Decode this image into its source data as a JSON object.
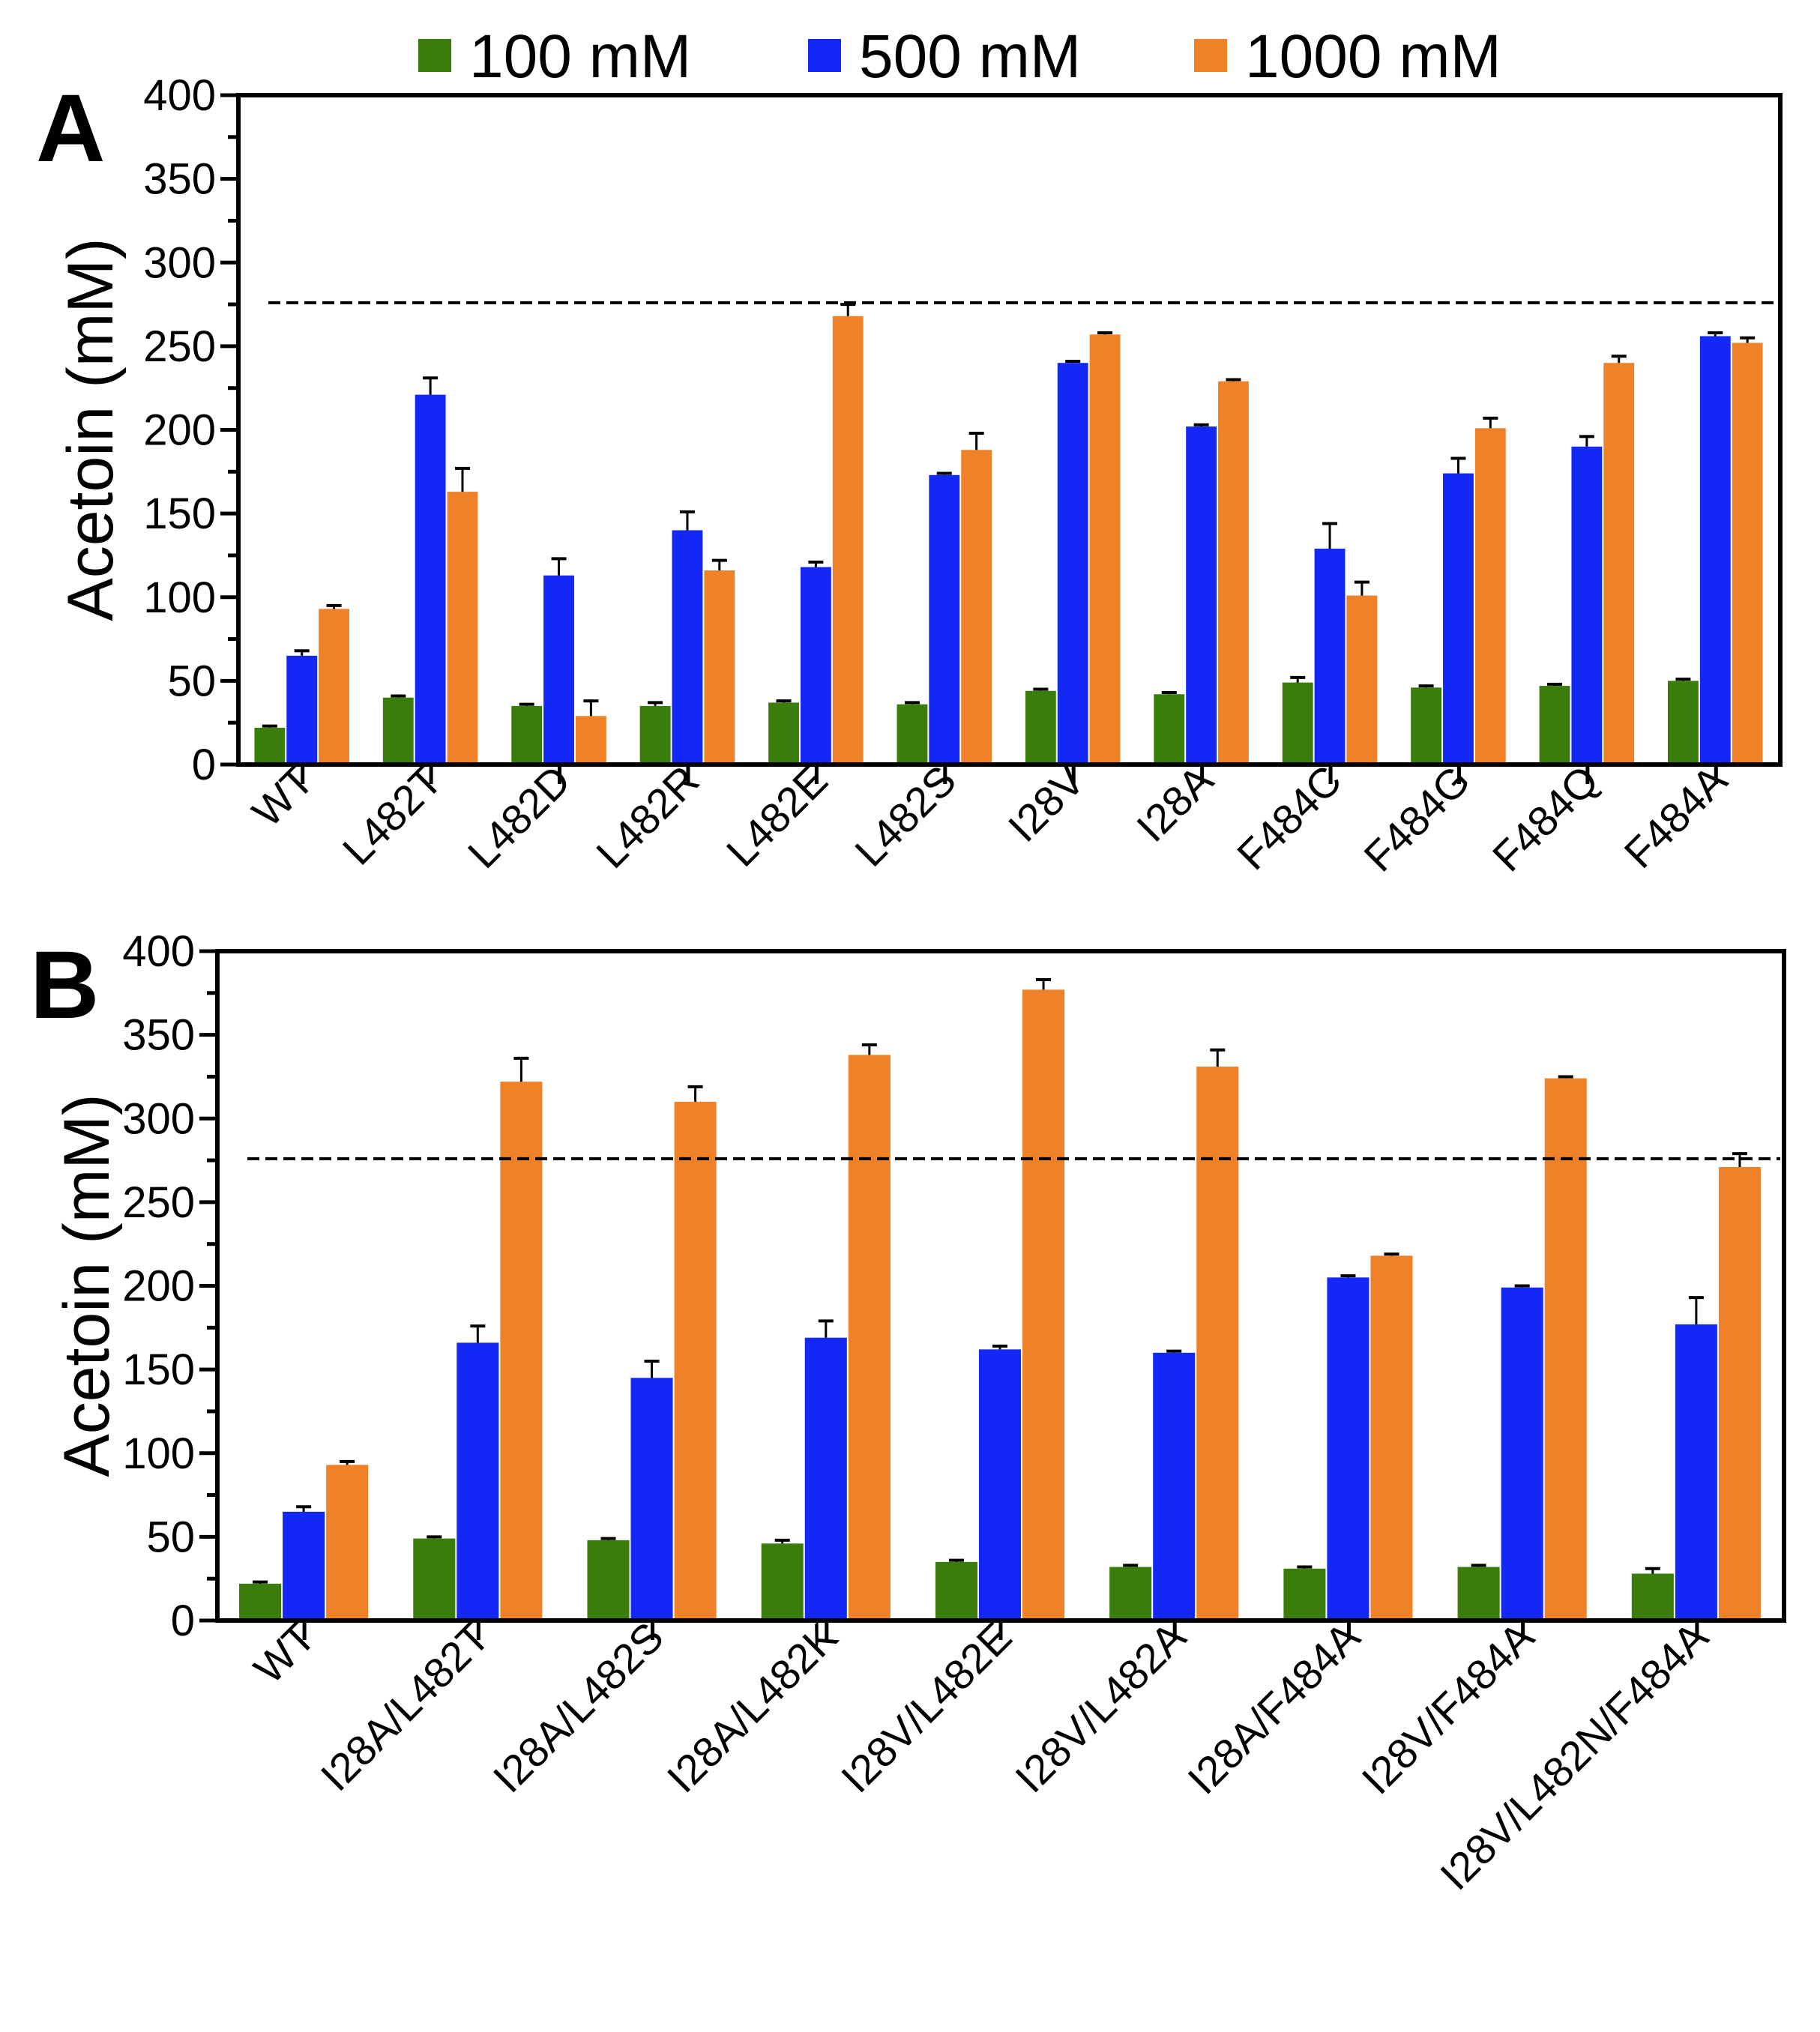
{
  "chart_data": [
    {
      "type": "bar",
      "panel": "A",
      "ylabel": "Acetoin (mM)",
      "ylim": [
        0,
        400
      ],
      "yticks": [
        0,
        50,
        100,
        150,
        200,
        250,
        300,
        350,
        400
      ],
      "reference_line": 276,
      "categories": [
        "WT",
        "L482T",
        "L482D",
        "L482R",
        "L482E",
        "L482S",
        "I28V",
        "I28A",
        "F484C",
        "F484G",
        "F484Q",
        "F484A"
      ],
      "series": [
        {
          "name": "100 mM",
          "color": "#3a7d0a",
          "values": [
            22,
            40,
            35,
            35,
            37,
            36,
            44,
            42,
            49,
            46,
            47,
            50
          ],
          "errors": [
            1,
            1,
            1,
            2,
            1,
            1,
            1,
            1,
            3,
            1,
            1,
            1
          ]
        },
        {
          "name": "500 mM",
          "color": "#1428f5",
          "values": [
            65,
            221,
            113,
            140,
            118,
            173,
            240,
            202,
            129,
            174,
            190,
            256
          ],
          "errors": [
            3,
            10,
            10,
            11,
            3,
            1,
            1,
            1,
            15,
            9,
            6,
            2
          ]
        },
        {
          "name": "1000 mM",
          "color": "#ef8228",
          "values": [
            93,
            163,
            29,
            116,
            268,
            188,
            257,
            229,
            101,
            201,
            240,
            252
          ],
          "errors": [
            2,
            14,
            9,
            6,
            7,
            10,
            1,
            1,
            8,
            6,
            4,
            3
          ]
        }
      ]
    },
    {
      "type": "bar",
      "panel": "B",
      "ylabel": "Acetoin (mM)",
      "ylim": [
        0,
        400
      ],
      "yticks": [
        0,
        50,
        100,
        150,
        200,
        250,
        300,
        350,
        400
      ],
      "reference_line": 276,
      "categories": [
        "WT",
        "I28A/L482T",
        "I28A/L482S",
        "I28A/L482K",
        "I28V/L482E",
        "I28V/L482A",
        "I28A/F484A",
        "I28V/F484A",
        "I28V/L482N/F484A"
      ],
      "series": [
        {
          "name": "100 mM",
          "color": "#3a7d0a",
          "values": [
            22,
            49,
            48,
            46,
            35,
            32,
            31,
            32,
            28
          ],
          "errors": [
            1,
            1,
            1,
            2,
            1,
            1,
            1,
            1,
            3
          ]
        },
        {
          "name": "500 mM",
          "color": "#1428f5",
          "values": [
            65,
            166,
            145,
            169,
            162,
            160,
            205,
            199,
            177
          ],
          "errors": [
            3,
            10,
            10,
            10,
            2,
            1,
            1,
            1,
            16
          ]
        },
        {
          "name": "1000 mM",
          "color": "#ef8228",
          "values": [
            93,
            322,
            310,
            338,
            377,
            331,
            218,
            324,
            271
          ],
          "errors": [
            2,
            14,
            9,
            6,
            6,
            10,
            1,
            1,
            8
          ]
        }
      ]
    }
  ],
  "legend": {
    "placement": "top",
    "items": [
      "100 mM",
      "500 mM",
      "1000 mM"
    ]
  }
}
